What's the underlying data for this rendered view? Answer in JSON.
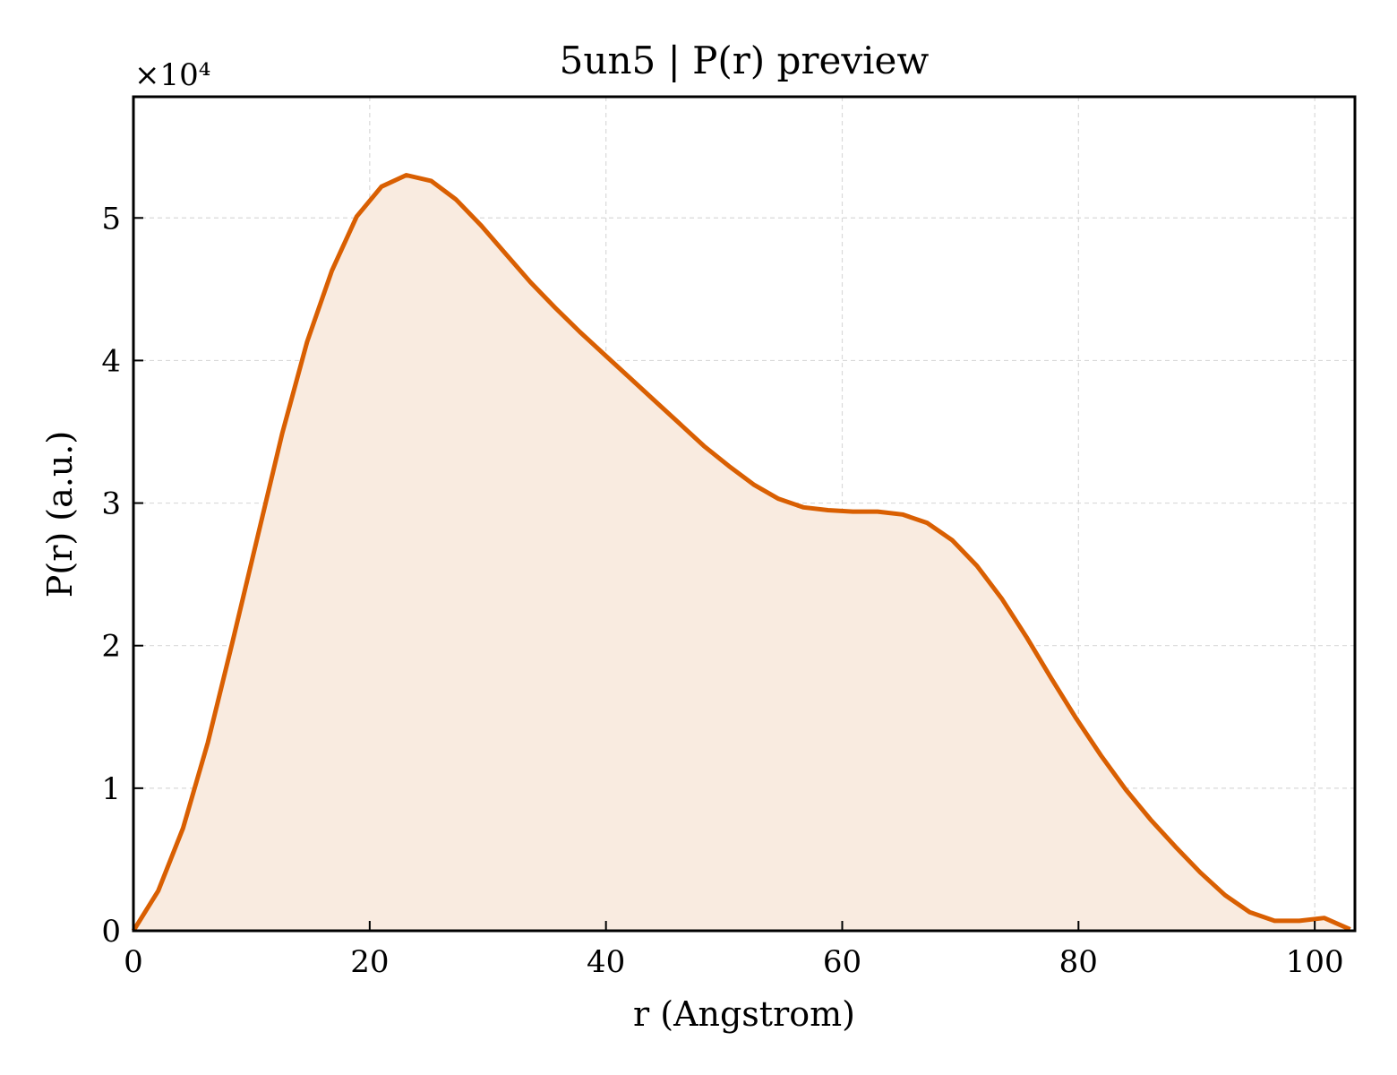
{
  "chart_data": {
    "type": "area",
    "title": "5un5 | P(r) preview",
    "xlabel": "r (Angstrom)",
    "ylabel": "P(r) (a.u.)",
    "y_scale_label": "×10⁴",
    "y_multiplier": 10000,
    "xlim": [
      0,
      103.4
    ],
    "ylim": [
      0,
      5.85
    ],
    "x_ticks": [
      0,
      20,
      40,
      60,
      80,
      100
    ],
    "y_ticks": [
      0,
      1,
      2,
      3,
      4,
      5
    ],
    "x_tick_labels": [
      "0",
      "20",
      "40",
      "60",
      "80",
      "100"
    ],
    "y_tick_labels": [
      "0",
      "1",
      "2",
      "3",
      "4",
      "5"
    ],
    "grid": true,
    "colors": {
      "line": "#d95f02",
      "fill": "#f9ebe0",
      "grid": "#d9d9d9"
    },
    "series": [
      {
        "x": [
          0,
          2.1,
          4.2,
          6.3,
          8.4,
          10.5,
          12.6,
          14.7,
          16.8,
          18.9,
          21.0,
          23.1,
          25.2,
          27.3,
          29.4,
          31.5,
          33.6,
          35.7,
          37.8,
          39.9,
          42.0,
          44.1,
          46.2,
          48.3,
          50.4,
          52.5,
          54.6,
          56.7,
          58.8,
          60.9,
          63.0,
          65.1,
          67.2,
          69.3,
          71.4,
          73.5,
          75.6,
          77.7,
          79.8,
          81.9,
          84.0,
          86.1,
          88.2,
          90.3,
          92.4,
          94.5,
          96.6,
          98.7,
          100.8,
          103.0
        ],
        "values": [
          0.0,
          0.28,
          0.72,
          1.32,
          2.03,
          2.76,
          3.49,
          4.13,
          4.63,
          5.01,
          5.22,
          5.3,
          5.26,
          5.13,
          4.95,
          4.75,
          4.55,
          4.37,
          4.2,
          4.04,
          3.88,
          3.72,
          3.56,
          3.4,
          3.26,
          3.13,
          3.03,
          2.97,
          2.95,
          2.94,
          2.94,
          2.92,
          2.86,
          2.74,
          2.56,
          2.33,
          2.06,
          1.77,
          1.49,
          1.23,
          0.99,
          0.78,
          0.59,
          0.41,
          0.25,
          0.13,
          0.07,
          0.07,
          0.09,
          0.01
        ]
      }
    ]
  }
}
